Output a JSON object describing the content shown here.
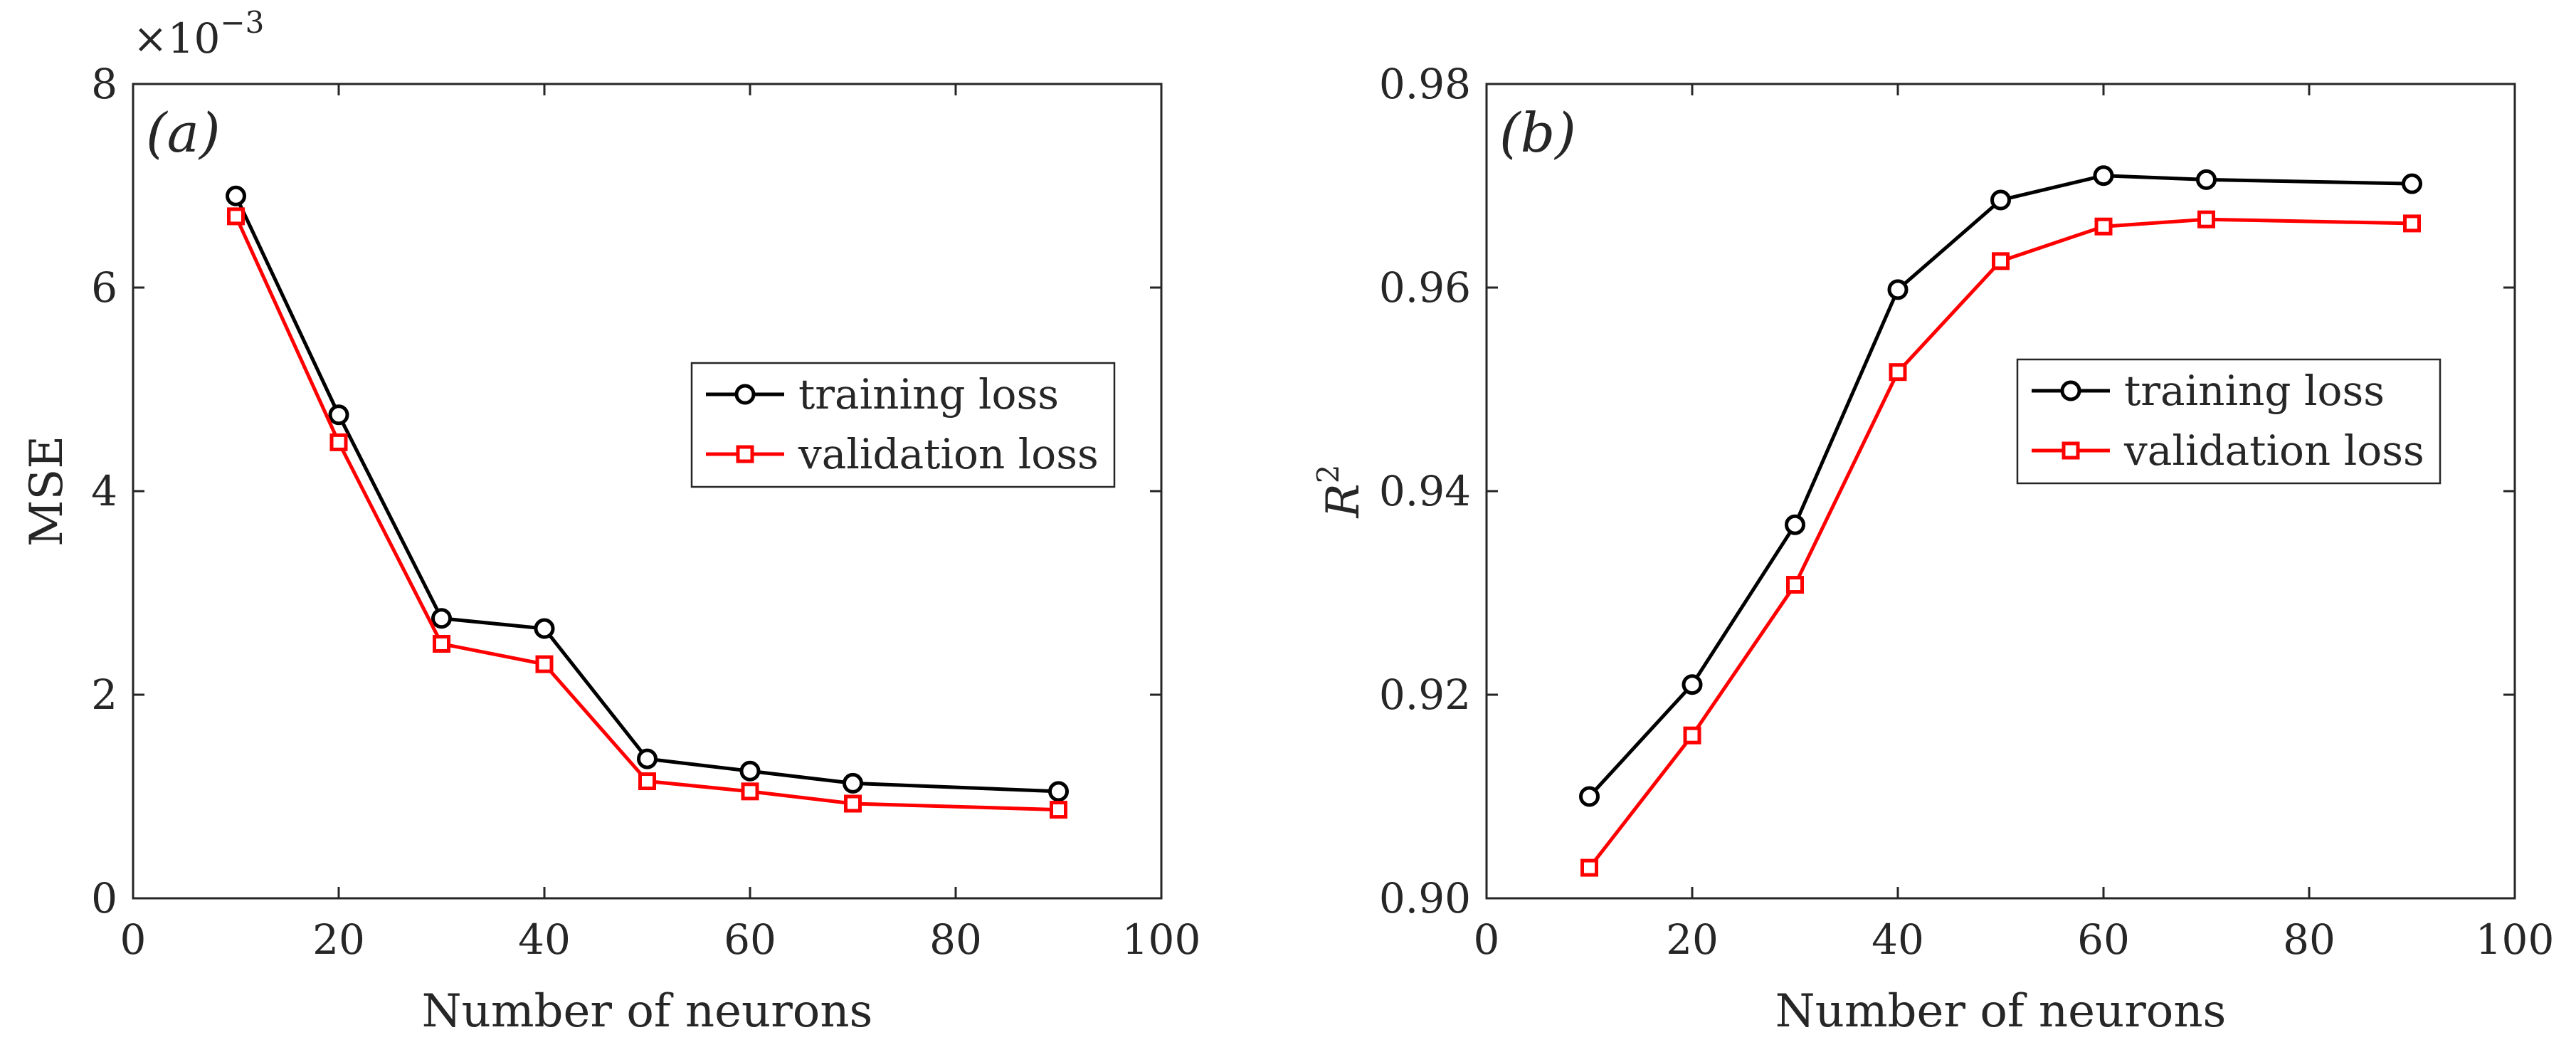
{
  "chart_data": [
    {
      "type": "line",
      "panel_label": "(a)",
      "xlabel": "Number of neurons",
      "ylabel": "MSE",
      "y_multiplier_label": "×10",
      "y_multiplier_exponent": "−3",
      "xlim": [
        0,
        100
      ],
      "ylim": [
        0,
        8
      ],
      "xticks": [
        0,
        20,
        40,
        60,
        80,
        100
      ],
      "yticks": [
        0,
        2,
        4,
        6,
        8
      ],
      "grid": false,
      "legend_position": "right-middle",
      "x": [
        10,
        20,
        30,
        40,
        50,
        60,
        70,
        90
      ],
      "series": [
        {
          "name": "training loss",
          "color": "#000000",
          "marker": "circle",
          "values": [
            6.9,
            4.75,
            2.75,
            2.65,
            1.37,
            1.25,
            1.13,
            1.05
          ]
        },
        {
          "name": "validation loss",
          "color": "#ff0000",
          "marker": "square",
          "values": [
            6.7,
            4.48,
            2.5,
            2.3,
            1.15,
            1.05,
            0.93,
            0.87
          ]
        }
      ]
    },
    {
      "type": "line",
      "panel_label": "(b)",
      "xlabel": "Number of neurons",
      "ylabel": "R",
      "ylabel_superscript": "2",
      "xlim": [
        0,
        100
      ],
      "ylim": [
        0.9,
        0.98
      ],
      "xticks": [
        0,
        20,
        40,
        60,
        80,
        100
      ],
      "yticks": [
        0.9,
        0.92,
        0.94,
        0.96,
        0.98
      ],
      "grid": false,
      "legend_position": "right-middle",
      "x": [
        10,
        20,
        30,
        40,
        50,
        60,
        70,
        90
      ],
      "series": [
        {
          "name": "training loss",
          "color": "#000000",
          "marker": "circle",
          "values": [
            0.91,
            0.921,
            0.9367,
            0.9598,
            0.9686,
            0.971,
            0.9706,
            0.9702
          ]
        },
        {
          "name": "validation loss",
          "color": "#ff0000",
          "marker": "square",
          "values": [
            0.903,
            0.916,
            0.9308,
            0.9517,
            0.9626,
            0.966,
            0.9667,
            0.9663
          ]
        }
      ]
    }
  ]
}
